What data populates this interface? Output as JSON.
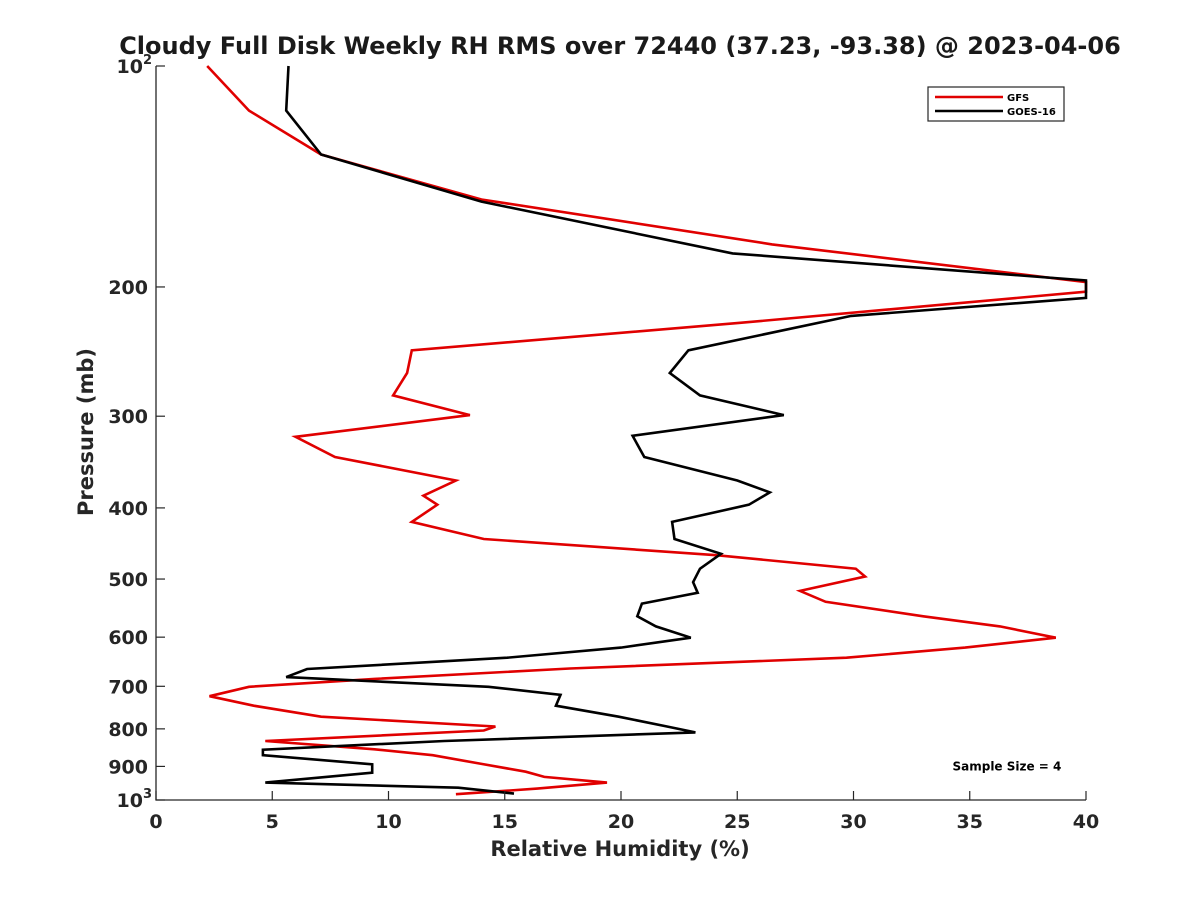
{
  "chart_data": {
    "type": "line",
    "title": "Cloudy Full Disk Weekly RH RMS over 72440 (37.23, -93.38) @ 2023-04-06",
    "xlabel": "Relative Humidity (%)",
    "ylabel": "Pressure (mb)",
    "xlim": [
      0,
      40
    ],
    "ylim": [
      100,
      1000
    ],
    "y_scale": "log",
    "y_reversed": true,
    "grid": false,
    "legend_position": "top-right",
    "x_ticks": [
      0,
      5,
      10,
      15,
      20,
      25,
      30,
      35,
      40
    ],
    "y_ticks": [
      {
        "value": 100,
        "base": "10",
        "exp": "2"
      },
      {
        "value": 200,
        "label": "200"
      },
      {
        "value": 300,
        "label": "300"
      },
      {
        "value": 400,
        "label": "400"
      },
      {
        "value": 500,
        "label": "500"
      },
      {
        "value": 600,
        "label": "600"
      },
      {
        "value": 700,
        "label": "700"
      },
      {
        "value": 800,
        "label": "800"
      },
      {
        "value": 900,
        "label": "900"
      },
      {
        "value": 1000,
        "base": "10",
        "exp": "3"
      }
    ],
    "series": [
      {
        "name": "GFS",
        "color": "#e00000",
        "points": [
          [
            2.2,
            100
          ],
          [
            4.0,
            115
          ],
          [
            7.1,
            132
          ],
          [
            14.0,
            152
          ],
          [
            26.5,
            175
          ],
          [
            40.0,
            197
          ],
          [
            40.0,
            203
          ],
          [
            25.0,
            224
          ],
          [
            11.0,
            244
          ],
          [
            10.8,
            262
          ],
          [
            10.2,
            281
          ],
          [
            13.5,
            299
          ],
          [
            6.0,
            320
          ],
          [
            7.7,
            341
          ],
          [
            12.9,
            367
          ],
          [
            11.5,
            385
          ],
          [
            12.1,
            396
          ],
          [
            11.0,
            418
          ],
          [
            14.1,
            441
          ],
          [
            24.1,
            464
          ],
          [
            30.1,
            484
          ],
          [
            30.5,
            496
          ],
          [
            27.7,
            519
          ],
          [
            28.8,
            537
          ],
          [
            33.0,
            562
          ],
          [
            36.3,
            580
          ],
          [
            38.7,
            601
          ],
          [
            34.8,
            620
          ],
          [
            29.7,
            640
          ],
          [
            17.8,
            662
          ],
          [
            9.4,
            684
          ],
          [
            4.0,
            701
          ],
          [
            2.3,
            722
          ],
          [
            4.2,
            744
          ],
          [
            7.1,
            770
          ],
          [
            14.6,
            794
          ],
          [
            14.1,
            804
          ],
          [
            4.7,
            831
          ],
          [
            9.4,
            853
          ],
          [
            11.9,
            869
          ],
          [
            14.0,
            893
          ],
          [
            15.9,
            915
          ],
          [
            16.7,
            930
          ],
          [
            19.4,
            947
          ],
          [
            16.4,
            965
          ],
          [
            12.9,
            982
          ]
        ]
      },
      {
        "name": "GOES-16",
        "color": "#000000",
        "points": [
          [
            5.7,
            100
          ],
          [
            5.6,
            115
          ],
          [
            7.1,
            132
          ],
          [
            14.0,
            153
          ],
          [
            24.8,
            180
          ],
          [
            40.0,
            196
          ],
          [
            40.0,
            207
          ],
          [
            29.9,
            219
          ],
          [
            22.9,
            244
          ],
          [
            22.1,
            262
          ],
          [
            23.4,
            281
          ],
          [
            27.0,
            299
          ],
          [
            20.5,
            319
          ],
          [
            21.0,
            341
          ],
          [
            25.0,
            367
          ],
          [
            26.4,
            381
          ],
          [
            25.5,
            396
          ],
          [
            22.2,
            418
          ],
          [
            22.3,
            441
          ],
          [
            24.3,
            462
          ],
          [
            23.4,
            484
          ],
          [
            23.1,
            505
          ],
          [
            23.3,
            522
          ],
          [
            20.9,
            540
          ],
          [
            20.7,
            562
          ],
          [
            21.5,
            580
          ],
          [
            23.0,
            601
          ],
          [
            20.0,
            620
          ],
          [
            15.1,
            640
          ],
          [
            6.5,
            663
          ],
          [
            5.6,
            680
          ],
          [
            14.3,
            701
          ],
          [
            17.4,
            719
          ],
          [
            17.2,
            744
          ],
          [
            19.9,
            770
          ],
          [
            21.9,
            793
          ],
          [
            23.2,
            809
          ],
          [
            12.4,
            831
          ],
          [
            4.6,
            854
          ],
          [
            4.6,
            869
          ],
          [
            9.3,
            894
          ],
          [
            9.3,
            918
          ],
          [
            4.7,
            947
          ],
          [
            13.0,
            962
          ],
          [
            15.4,
            980
          ]
        ]
      }
    ],
    "annotations": [
      {
        "text": "Sample Size = 4",
        "x": 36.6,
        "y": 900
      }
    ]
  }
}
